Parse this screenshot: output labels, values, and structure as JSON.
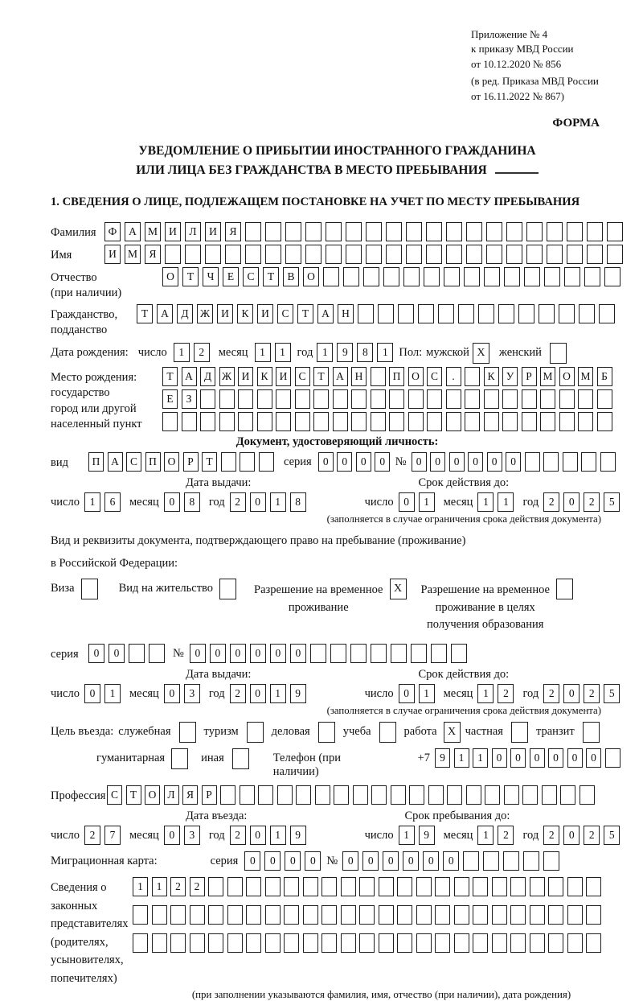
{
  "meta": {
    "appendix": [
      "Приложение № 4",
      "к приказу МВД России",
      "от 10.12.2020 № 856"
    ],
    "revision": [
      "(в ред. Приказа МВД России",
      "от 16.11.2022 № 867)"
    ],
    "form_word": "ФОРМА"
  },
  "title": {
    "line1": "УВЕДОМЛЕНИЕ О ПРИБЫТИИ ИНОСТРАННОГО ГРАЖДАНИНА",
    "line2": "ИЛИ ЛИЦА БЕЗ ГРАЖДАНСТВА В МЕСТО ПРЕБЫВАНИЯ"
  },
  "section1_heading": "1. СВЕДЕНИЯ О ЛИЦЕ, ПОДЛЕЖАЩЕМ ПОСТАНОВКЕ НА УЧЕТ ПО МЕСТУ ПРЕБЫВАНИЯ",
  "labels": {
    "day": "число",
    "month": "месяц",
    "year": "год",
    "series": "серия",
    "number": "№",
    "issue_date": "Дата выдачи:",
    "valid_until": "Срок действия до:",
    "valid_note": "(заполняется в случае ограничения срока действия документа)"
  },
  "person": {
    "surname": {
      "label": "Фамилия",
      "cells": {
        "v": "ФАМИЛИЯ",
        "n": 26
      }
    },
    "firstname": {
      "label": "Имя",
      "cells": {
        "v": "ИМЯ",
        "n": 26
      }
    },
    "patronymic": {
      "label": "Отчество",
      "label2": "(при наличии)",
      "cells": {
        "v": "ОТЧЕСТВО",
        "n": 23
      }
    },
    "citizenship": {
      "label": "Гражданство,",
      "label2": "подданство",
      "cells": {
        "v": "ТАДЖИКИСТАН",
        "n": 24
      }
    },
    "birth_date": {
      "label": "Дата рождения:",
      "day": {
        "v": "12",
        "n": 2
      },
      "month": {
        "v": "11",
        "n": 2
      },
      "year": {
        "v": "1981",
        "n": 4
      }
    },
    "sex": {
      "label": "Пол:",
      "male_label": "мужской",
      "male_mark": "X",
      "female_label": "женский",
      "female_mark": ""
    },
    "birth_place": {
      "label_lines": [
        "Место рождения:",
        "государство",
        "город или другой",
        "населенный пункт"
      ],
      "row1": {
        "v": "ТАДЖИКИСТАН ПОС. КУРМОМБ",
        "n": 24
      },
      "row2": {
        "v": "ЕЗ",
        "n": 24
      },
      "row3": {
        "v": "",
        "n": 24
      }
    }
  },
  "identity_doc": {
    "heading": "Документ, удостоверяющий личность:",
    "kind_label": "вид",
    "kind": {
      "v": "ПАСПОРТ",
      "n": 10
    },
    "series": {
      "v": "0000",
      "n": 4
    },
    "number": {
      "v": "000000",
      "n": 11
    },
    "issue": {
      "day": {
        "v": "16",
        "n": 2
      },
      "month": {
        "v": "08",
        "n": 2
      },
      "year": {
        "v": "2018",
        "n": 4
      }
    },
    "valid": {
      "day": {
        "v": "01",
        "n": 2
      },
      "month": {
        "v": "11",
        "n": 2
      },
      "year": {
        "v": "2025",
        "n": 4
      }
    }
  },
  "stay_doc": {
    "heading1": "Вид и реквизиты документа, подтверждающего право на пребывание (проживание)",
    "heading2": "в Российской Федерации:",
    "visa": {
      "label": "Виза",
      "mark": ""
    },
    "residence_permit": {
      "label": "Вид на жительство",
      "mark": ""
    },
    "temp_permit": {
      "lines": [
        "Разрешение на временное",
        "проживание"
      ],
      "mark": "X"
    },
    "edu_permit": {
      "lines": [
        "Разрешение на временное",
        "проживание в целях",
        "получения образования"
      ],
      "mark": ""
    },
    "series": {
      "v": "00",
      "n": 4
    },
    "number": {
      "v": "000000",
      "n": 14
    },
    "issue": {
      "day": {
        "v": "01",
        "n": 2
      },
      "month": {
        "v": "03",
        "n": 2
      },
      "year": {
        "v": "2019",
        "n": 4
      }
    },
    "valid": {
      "day": {
        "v": "01",
        "n": 2
      },
      "month": {
        "v": "12",
        "n": 2
      },
      "year": {
        "v": "2025",
        "n": 4
      }
    }
  },
  "visit": {
    "label": "Цель въезда:",
    "row1": [
      {
        "label": "служебная",
        "mark": ""
      },
      {
        "label": "туризм",
        "mark": ""
      },
      {
        "label": "деловая",
        "mark": ""
      },
      {
        "label": "учеба",
        "mark": ""
      },
      {
        "label": "работа",
        "mark": "X"
      },
      {
        "label": "частная",
        "mark": ""
      },
      {
        "label": "транзит",
        "mark": ""
      }
    ],
    "row2": [
      {
        "label": "гуманитарная",
        "mark": ""
      },
      {
        "label": "иная",
        "mark": ""
      }
    ],
    "phone_label": "Телефон (при наличии)",
    "phone_prefix": "+7",
    "phone": {
      "v": "911000000",
      "n": 10
    }
  },
  "profession": {
    "label": "Профессия",
    "cells": {
      "v": "СТОЛЯР",
      "n": 26
    }
  },
  "entry": {
    "date_label": "Дата въезда:",
    "until_label": "Срок пребывания до:",
    "date": {
      "day": {
        "v": "27",
        "n": 2
      },
      "month": {
        "v": "03",
        "n": 2
      },
      "year": {
        "v": "2019",
        "n": 4
      }
    },
    "until": {
      "day": {
        "v": "19",
        "n": 2
      },
      "month": {
        "v": "12",
        "n": 2
      },
      "year": {
        "v": "2025",
        "n": 4
      }
    }
  },
  "migration_card": {
    "label": "Миграционная карта:",
    "series": {
      "v": "0000",
      "n": 4
    },
    "number": {
      "v": "000000",
      "n": 11
    }
  },
  "representatives": {
    "label_lines": [
      "Сведения о",
      "законных",
      "представителях",
      "(родителях,",
      "усыновителях,",
      "попечителях)"
    ],
    "row1": {
      "v": "1122",
      "n": 25
    },
    "row2": {
      "v": "",
      "n": 25
    },
    "row3": {
      "v": "",
      "n": 25
    },
    "note": "(при заполнении указываются фамилия, имя, отчество (при наличии), дата рождения)"
  }
}
